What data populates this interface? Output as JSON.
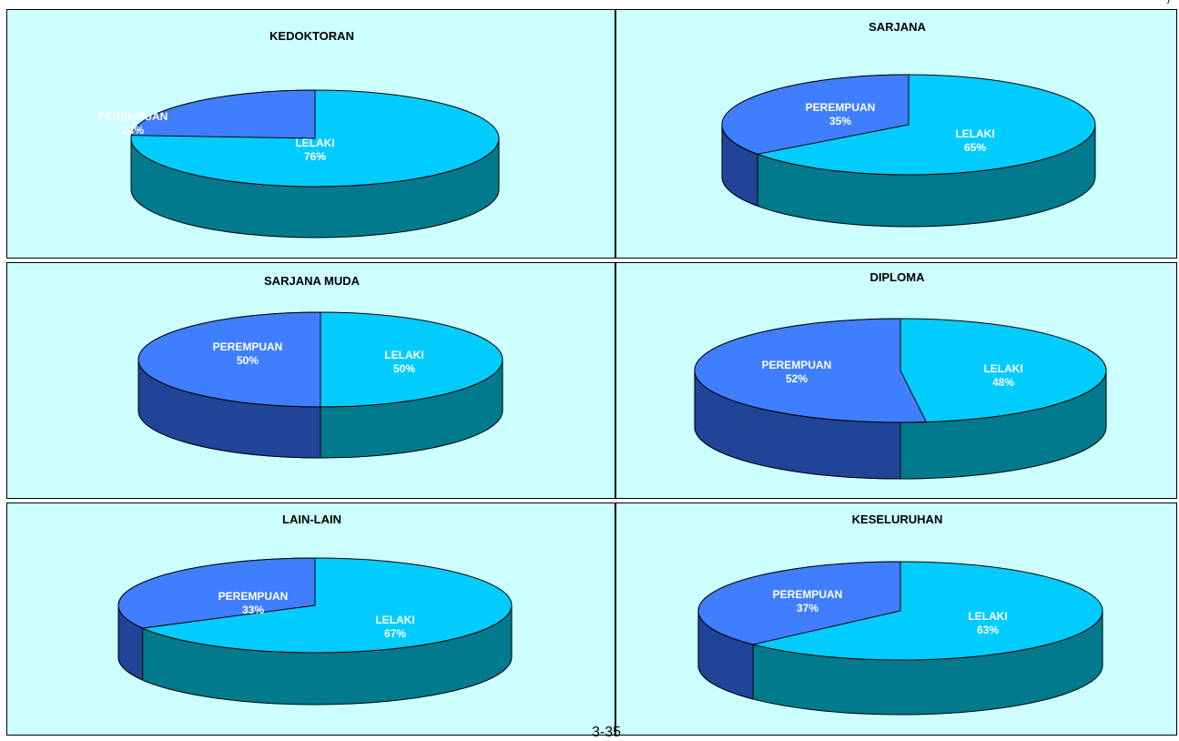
{
  "colors": {
    "background": "#CCFFFF",
    "lelaki_top": "#00CCFF",
    "lelaki_side": "#007A8C",
    "perempuan_top": "#3F7FFF",
    "perempuan_side": "#204497",
    "label_text": "#FFFFFF",
    "title_text": "#000000"
  },
  "page_number": "3-35",
  "chart_data": [
    {
      "type": "pie",
      "title": "KEDOKTORAN",
      "slices": [
        {
          "label": "LELAKI",
          "value": 76,
          "value_label": "76%"
        },
        {
          "label": "PEREMPUAN",
          "value": 24,
          "value_label": "24%"
        }
      ]
    },
    {
      "type": "pie",
      "title": "SARJANA",
      "slices": [
        {
          "label": "LELAKI",
          "value": 65,
          "value_label": "65%"
        },
        {
          "label": "PEREMPUAN",
          "value": 35,
          "value_label": "35%"
        }
      ]
    },
    {
      "type": "pie",
      "title": "SARJANA MUDA",
      "slices": [
        {
          "label": "LELAKI",
          "value": 50,
          "value_label": "50%"
        },
        {
          "label": "PEREMPUAN",
          "value": 50,
          "value_label": "50%"
        }
      ]
    },
    {
      "type": "pie",
      "title": "DIPLOMA",
      "slices": [
        {
          "label": "LELAKI",
          "value": 48,
          "value_label": "48%"
        },
        {
          "label": "PEREMPUAN",
          "value": 52,
          "value_label": "52%"
        }
      ]
    },
    {
      "type": "pie",
      "title": "LAIN-LAIN",
      "slices": [
        {
          "label": "LELAKI",
          "value": 67,
          "value_label": "67%"
        },
        {
          "label": "PEREMPUAN",
          "value": 33,
          "value_label": "33%"
        }
      ]
    },
    {
      "type": "pie",
      "title": "KESELURUHAN",
      "slices": [
        {
          "label": "LELAKI",
          "value": 63,
          "value_label": "63%"
        },
        {
          "label": "PEREMPUAN",
          "value": 37,
          "value_label": "37%"
        }
      ]
    }
  ]
}
